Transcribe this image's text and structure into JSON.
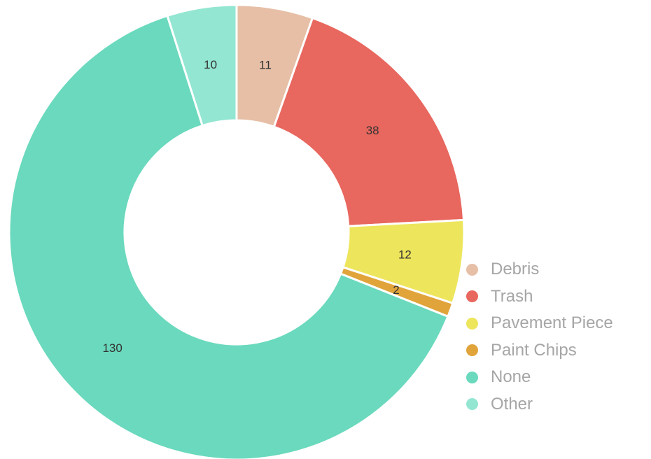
{
  "chart_data": {
    "type": "pie",
    "subtype": "donut",
    "title": "",
    "slices": [
      {
        "label": "Debris",
        "value": 11,
        "color": "#e6bfa6"
      },
      {
        "label": "Trash",
        "value": 38,
        "color": "#e8675e"
      },
      {
        "label": "Pavement Piece",
        "value": 12,
        "color": "#ede55c"
      },
      {
        "label": "Paint Chips",
        "value": 2,
        "color": "#e0a43a"
      },
      {
        "label": "None",
        "value": 130,
        "color": "#6ad9bd"
      },
      {
        "label": "Other",
        "value": 10,
        "color": "#93e6d2"
      }
    ],
    "legend_position": "bottom-right",
    "data_labels_shown": true
  }
}
